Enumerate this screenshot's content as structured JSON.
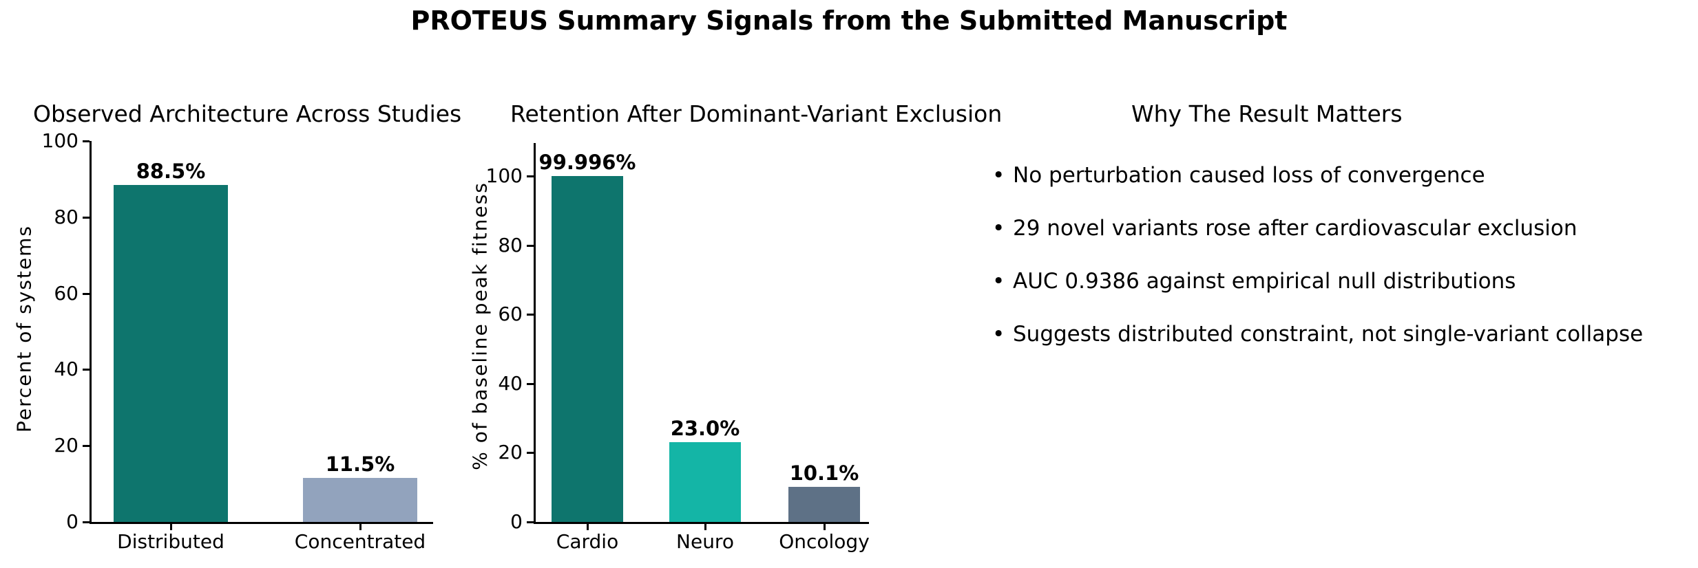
{
  "title": "PROTEUS Summary Signals from the Submitted Manuscript",
  "chart_data": [
    {
      "type": "bar",
      "title": "Observed Architecture Across Studies",
      "ylabel": "Percent of systems",
      "xlabel": "",
      "categories": [
        "Distributed",
        "Concentrated"
      ],
      "values": [
        88.5,
        11.5
      ],
      "value_labels": [
        "88.5%",
        "11.5%"
      ],
      "bar_colors": [
        "#0e756d",
        "#92a3bd"
      ],
      "yticks": [
        0,
        20,
        40,
        60,
        80,
        100
      ],
      "ylim": [
        0,
        100
      ],
      "grid": false,
      "legend_position": "none"
    },
    {
      "type": "bar",
      "title": "Retention After Dominant-Variant Exclusion",
      "ylabel": "% of baseline peak fitness",
      "xlabel": "",
      "categories": [
        "Cardio",
        "Neuro",
        "Oncology"
      ],
      "values": [
        99.996,
        23.0,
        10.1
      ],
      "value_labels": [
        "99.996%",
        "23.0%",
        "10.1%"
      ],
      "bar_colors": [
        "#0e756d",
        "#14b5a6",
        "#5e7186"
      ],
      "yticks": [
        0,
        20,
        40,
        60,
        80,
        100
      ],
      "ylim": [
        0,
        110
      ],
      "grid": false,
      "legend_position": "none"
    }
  ],
  "panel": {
    "title": "Why The Result Matters",
    "bullets": [
      "No perturbation caused loss of convergence",
      "29 novel variants rose after cardiovascular exclusion",
      "AUC 0.9386 against empirical null distributions",
      "Suggests distributed constraint, not single-variant collapse"
    ]
  },
  "colors": {
    "teal": "#0e756d",
    "turquoise": "#14b5a6",
    "slate_blue": "#5e7186",
    "gray_blue": "#92a3bd",
    "axis": "#000000",
    "background": "#ffffff"
  }
}
